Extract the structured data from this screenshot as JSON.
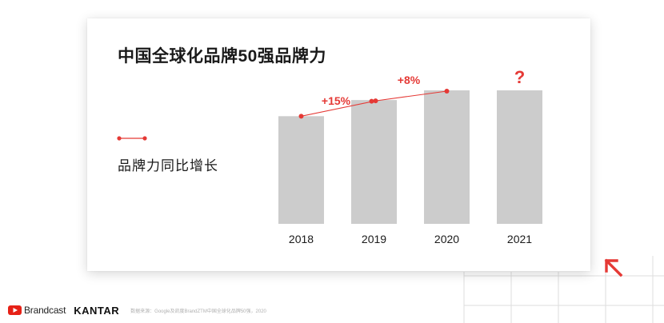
{
  "footer": {
    "brand1": "Brandcast",
    "brand2": "KANTAR",
    "source": "数据来源：Google及凯度BrandZTM中国全球化品牌50强，2020"
  },
  "legend": {
    "label": "品牌力同比增长"
  },
  "colors": {
    "accent": "#e53935",
    "bar": "#cccccc",
    "text": "#1a1a1a"
  },
  "icons": [
    "youtube-icon",
    "arrow-up-left-icon"
  ],
  "chart_data": {
    "type": "bar",
    "title": "中国全球化品牌50强品牌力",
    "categories": [
      "2018",
      "2019",
      "2020",
      "2021"
    ],
    "values": [
      100,
      115,
      124,
      124
    ],
    "unknown_value_marker": "?",
    "growth_line": [
      {
        "x": "2018",
        "y": 100
      },
      {
        "x": "2019",
        "y": 115
      },
      {
        "x": "2020",
        "y": 124
      }
    ],
    "annotations": [
      {
        "between": [
          "2018",
          "2019"
        ],
        "text": "+15%"
      },
      {
        "between": [
          "2019",
          "2020"
        ],
        "text": "+8%"
      },
      {
        "at": "2021",
        "text": "?"
      }
    ],
    "xlabel": "",
    "ylabel": "",
    "ylim": [
      0,
      124
    ],
    "grid": false
  }
}
